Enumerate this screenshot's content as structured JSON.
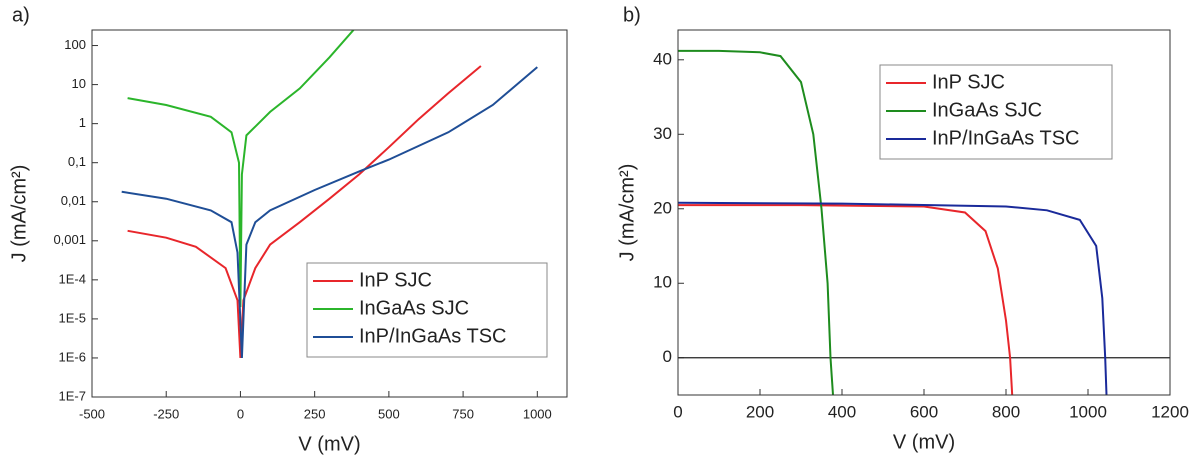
{
  "chart_data": [
    {
      "type": "line",
      "panel_label": "a)",
      "x_label": "V (mV)",
      "y_label": "J (mA/cm²)",
      "log_y": true,
      "legend": "lower right",
      "xlim": [
        -500,
        1100
      ],
      "xticks": [
        -500,
        -250,
        0,
        250,
        500,
        750,
        1000
      ],
      "ylim": [
        1e-07,
        250
      ],
      "yticks": [
        {
          "value": 1e-07,
          "label": "1E-7"
        },
        {
          "value": 1e-06,
          "label": "1E-6"
        },
        {
          "value": 1e-05,
          "label": "1E-5"
        },
        {
          "value": 0.0001,
          "label": "1E-4"
        },
        {
          "value": 0.001,
          "label": "0,001"
        },
        {
          "value": 0.01,
          "label": "0,01"
        },
        {
          "value": 0.1,
          "label": "0,1"
        },
        1,
        10,
        100
      ],
      "series": [
        {
          "name": "InP SJC",
          "color": "#e8262b",
          "x": [
            -380,
            -250,
            -150,
            -50,
            -10,
            0,
            10,
            50,
            100,
            200,
            300,
            400,
            500,
            600,
            700,
            810
          ],
          "values": [
            0.0018,
            0.0012,
            0.0007,
            0.0002,
            3e-05,
            1e-06,
            3e-05,
            0.0002,
            0.0008,
            0.003,
            0.012,
            0.05,
            0.25,
            1.3,
            6,
            30
          ]
        },
        {
          "name": "InGaAs SJC",
          "color": "#2bb52b",
          "x": [
            -380,
            -250,
            -100,
            -30,
            -5,
            0,
            5,
            20,
            100,
            200,
            300,
            390
          ],
          "values": [
            4.5,
            3,
            1.5,
            0.6,
            0.1,
            2e-05,
            0.05,
            0.5,
            2,
            8,
            50,
            300
          ]
        },
        {
          "name": "InP/InGaAs TSC",
          "color": "#1f4e96",
          "x": [
            -400,
            -250,
            -100,
            -30,
            -10,
            5,
            20,
            50,
            100,
            250,
            400,
            500,
            700,
            850,
            1000
          ],
          "values": [
            0.018,
            0.012,
            0.006,
            0.003,
            0.0005,
            1e-06,
            0.0008,
            0.003,
            0.006,
            0.02,
            0.06,
            0.12,
            0.6,
            3,
            28
          ]
        }
      ]
    },
    {
      "type": "line",
      "panel_label": "b)",
      "x_label": "V (mV)",
      "y_label": "J (mA/cm²)",
      "log_y": false,
      "legend": "upper right",
      "zero_line": true,
      "xlim": [
        0,
        1200
      ],
      "xticks": [
        0,
        200,
        400,
        600,
        800,
        1000,
        1200
      ],
      "ylim": [
        -5,
        44
      ],
      "yticks": [
        0,
        10,
        20,
        30,
        40
      ],
      "series": [
        {
          "name": "InP SJC",
          "color": "#e8262b",
          "x": [
            0,
            300,
            600,
            700,
            750,
            780,
            800,
            810,
            815
          ],
          "values": [
            20.5,
            20.5,
            20.3,
            19.5,
            17,
            12,
            5,
            0,
            -5
          ]
        },
        {
          "name": "InGaAs SJC",
          "color": "#1e8c1e",
          "x": [
            0,
            100,
            200,
            250,
            300,
            330,
            350,
            365,
            372,
            378
          ],
          "values": [
            41.2,
            41.2,
            41,
            40.5,
            37,
            30,
            20,
            10,
            0,
            -5
          ]
        },
        {
          "name": "InP/InGaAs TSC",
          "color": "#1a2a9a",
          "x": [
            0,
            400,
            800,
            900,
            980,
            1020,
            1035,
            1042,
            1045
          ],
          "values": [
            20.8,
            20.7,
            20.3,
            19.8,
            18.5,
            15,
            8,
            0,
            -5
          ]
        }
      ]
    }
  ]
}
